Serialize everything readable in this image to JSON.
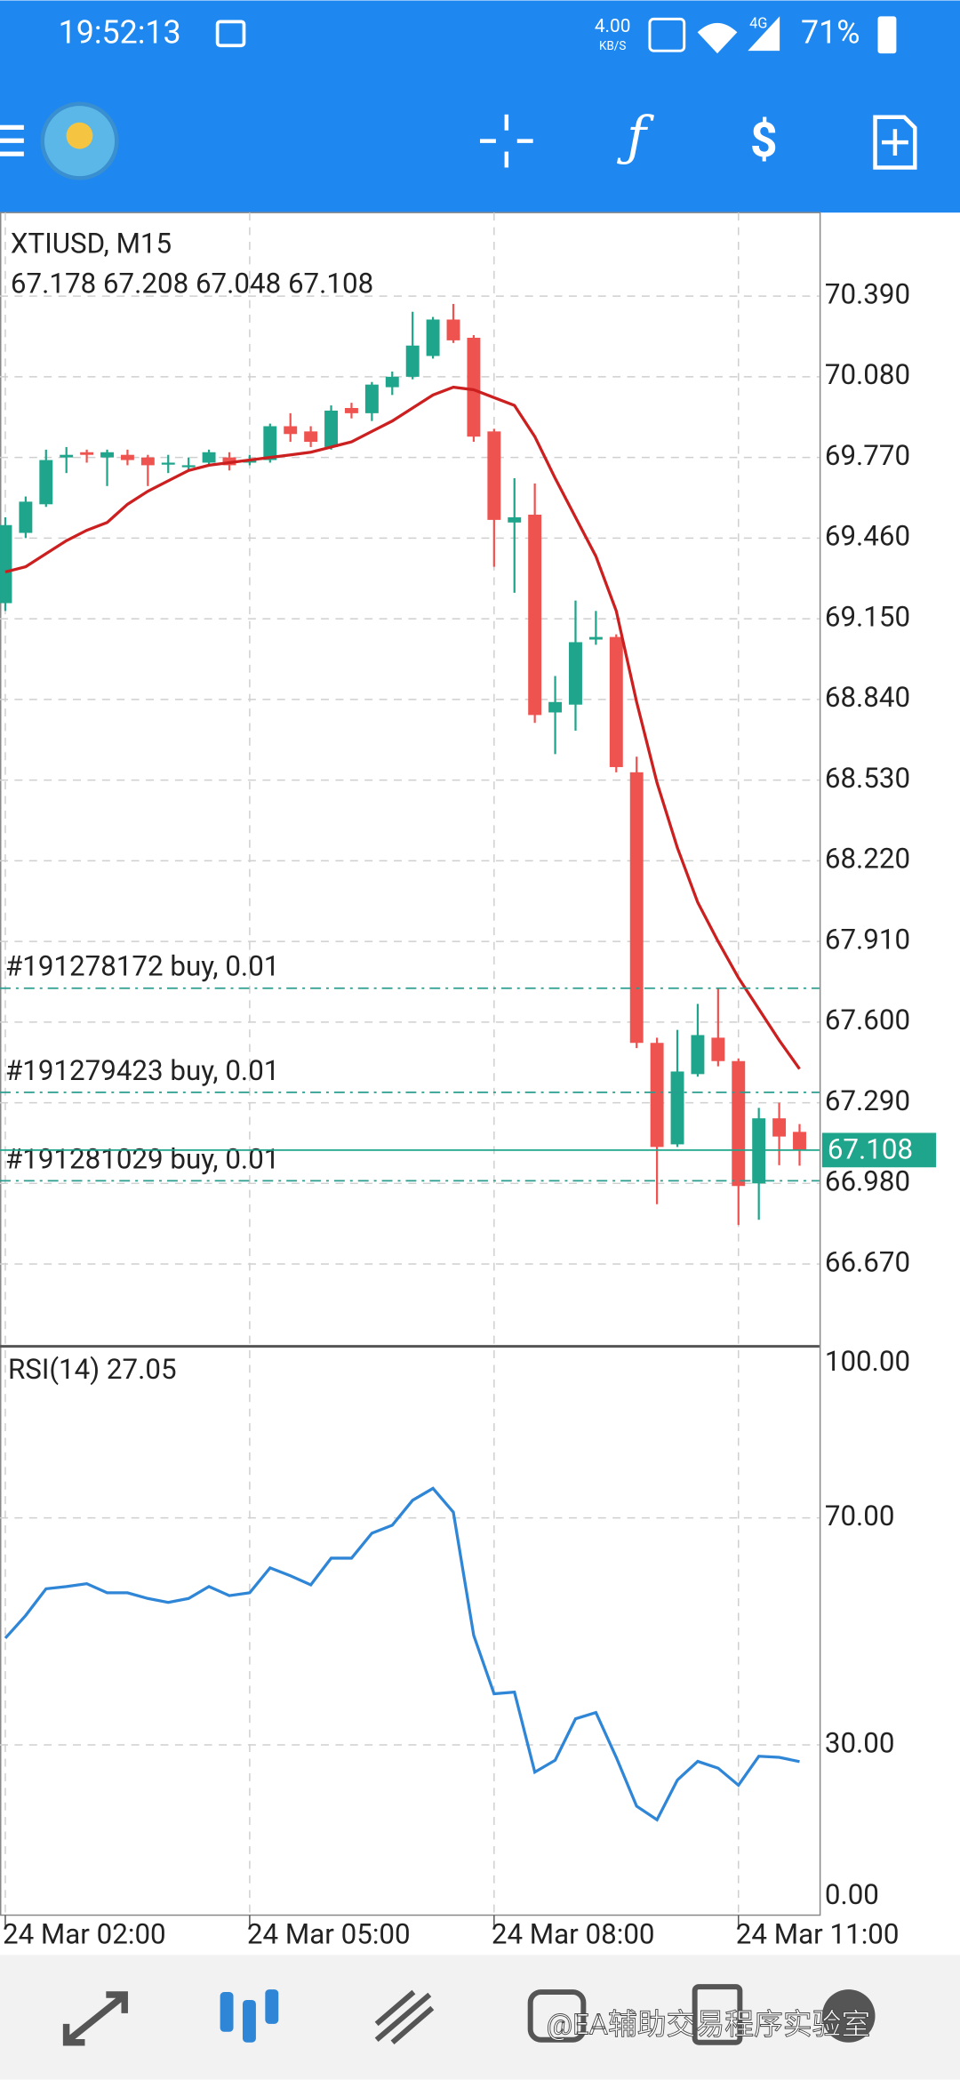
{
  "status_bar": {
    "time": "19:52:13",
    "net_speed": "4.00",
    "net_speed_unit": "KB/S",
    "network": "4G",
    "battery": "71%"
  },
  "chart_data": [
    {
      "type": "candlestick",
      "title": "XTIUSD, M15",
      "subtitle": "67.178 67.208 67.048 67.108",
      "categories": [
        "24 Mar 02:00",
        null,
        null,
        null,
        null,
        null,
        null,
        null,
        null,
        null,
        null,
        null,
        "24 Mar 05:00",
        null,
        null,
        null,
        null,
        null,
        null,
        null,
        null,
        null,
        null,
        null,
        "24 Mar 08:00",
        null,
        null,
        null,
        null,
        null,
        null,
        null,
        null,
        null,
        null,
        null,
        "24 Mar 11:00",
        null,
        null,
        null
      ],
      "open": [
        69.21,
        69.48,
        69.59,
        69.77,
        69.79,
        69.77,
        69.78,
        69.77,
        69.75,
        69.74,
        69.75,
        69.77,
        69.75,
        69.76,
        69.89,
        69.87,
        69.81,
        69.96,
        69.94,
        70.04,
        70.08,
        70.16,
        70.3,
        70.23,
        69.87,
        69.52,
        69.55,
        68.79,
        68.82,
        69.07,
        69.08,
        68.56,
        67.52,
        67.13,
        67.4,
        67.54,
        67.45,
        66.98,
        67.23,
        67.178
      ],
      "high": [
        69.54,
        69.62,
        69.8,
        69.81,
        69.8,
        69.8,
        69.8,
        69.78,
        69.78,
        69.77,
        69.8,
        69.79,
        69.78,
        69.9,
        69.94,
        69.89,
        69.97,
        69.98,
        70.06,
        70.1,
        70.33,
        70.31,
        70.36,
        70.24,
        69.88,
        69.69,
        69.67,
        68.93,
        69.22,
        69.18,
        69.09,
        68.62,
        67.54,
        67.57,
        67.67,
        67.73,
        67.46,
        67.27,
        67.29,
        67.208
      ],
      "low": [
        69.18,
        69.46,
        69.58,
        69.71,
        69.75,
        69.66,
        69.74,
        69.66,
        69.71,
        69.72,
        69.74,
        69.72,
        69.74,
        69.75,
        69.83,
        69.81,
        69.8,
        69.92,
        69.91,
        70.01,
        70.07,
        70.15,
        70.21,
        69.83,
        69.35,
        69.25,
        68.75,
        68.63,
        68.72,
        69.05,
        68.56,
        67.5,
        66.9,
        67.12,
        67.39,
        67.43,
        66.82,
        66.84,
        67.05,
        67.048
      ],
      "close": [
        69.51,
        69.6,
        69.76,
        69.78,
        69.78,
        69.79,
        69.76,
        69.74,
        69.75,
        69.74,
        69.79,
        69.74,
        69.76,
        69.89,
        69.86,
        69.83,
        69.95,
        69.94,
        70.05,
        70.08,
        70.2,
        70.3,
        70.22,
        69.85,
        69.53,
        69.54,
        68.78,
        68.83,
        69.06,
        69.08,
        68.58,
        67.52,
        67.12,
        67.41,
        67.55,
        67.45,
        66.97,
        67.23,
        67.16,
        67.108
      ],
      "up_color": "#1fa58b",
      "down_color": "#ef5350",
      "ma": {
        "color": "#cc1f1f",
        "values": [
          69.33,
          69.35,
          69.4,
          69.45,
          69.49,
          69.52,
          69.59,
          69.64,
          69.68,
          69.72,
          69.74,
          69.75,
          69.76,
          69.77,
          69.78,
          69.79,
          69.81,
          69.83,
          69.87,
          69.91,
          69.96,
          70.01,
          70.04,
          70.03,
          70.0,
          69.97,
          69.85,
          69.69,
          69.54,
          69.39,
          69.18,
          68.83,
          68.52,
          68.27,
          68.06,
          67.91,
          67.77,
          67.65,
          67.53,
          67.42
        ]
      },
      "ylim": [
        66.359,
        70.711
      ],
      "yticks": [
        {
          "value": 70.39,
          "label": "70.390"
        },
        {
          "value": 70.08,
          "label": "70.080"
        },
        {
          "value": 69.77,
          "label": "69.770"
        },
        {
          "value": 69.46,
          "label": "69.460"
        },
        {
          "value": 69.15,
          "label": "69.150"
        },
        {
          "value": 68.84,
          "label": "68.840"
        },
        {
          "value": 68.53,
          "label": "68.530"
        },
        {
          "value": 68.22,
          "label": "68.220"
        },
        {
          "value": 67.91,
          "label": "67.910"
        },
        {
          "value": 67.6,
          "label": "67.600"
        },
        {
          "value": 67.29,
          "label": "67.290"
        },
        {
          "value": 66.98,
          "label": "66.980"
        },
        {
          "value": 66.67,
          "label": "66.670"
        }
      ],
      "grid": true,
      "orders": [
        {
          "label": "#191278172 buy, 0.01",
          "value": 67.73
        },
        {
          "label": "#191279423 buy, 0.01",
          "value": 67.33
        },
        {
          "label": "#191281029 buy, 0.01",
          "value": 66.99
        }
      ],
      "last_price": 67.108,
      "last_price_color": "#1fa58b"
    },
    {
      "type": "line",
      "title": "RSI(14) 27.05",
      "color": "#2f86d6",
      "values": [
        48.8,
        52.8,
        57.5,
        57.9,
        58.4,
        56.8,
        56.8,
        55.8,
        55.1,
        55.8,
        57.9,
        56.3,
        56.8,
        61.2,
        59.8,
        58.2,
        62.9,
        62.9,
        67.3,
        68.7,
        73.1,
        75.2,
        71.0,
        49.3,
        39.0,
        39.3,
        25.2,
        27.3,
        34.6,
        35.7,
        27.8,
        19.2,
        16.8,
        23.8,
        27.1,
        25.9,
        22.9,
        28.0,
        27.8,
        27.05
      ],
      "ylim": [
        0,
        100
      ],
      "yticks": [
        {
          "value": 0,
          "label": "0.00"
        },
        {
          "value": 30,
          "label": "30.00"
        },
        {
          "value": 70,
          "label": "70.00"
        },
        {
          "value": 100,
          "label": "100.00"
        }
      ],
      "grid": true
    }
  ],
  "watermark": "@EA辅助交易程序实验室"
}
